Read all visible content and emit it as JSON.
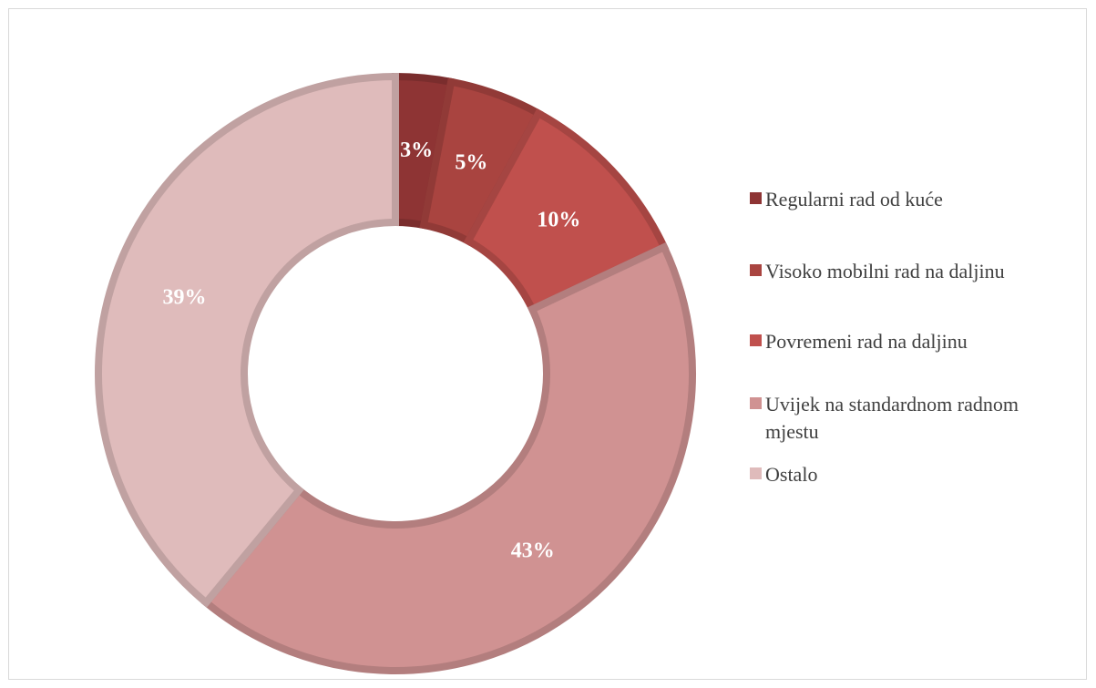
{
  "chart_data": {
    "type": "pie",
    "variant": "donut",
    "legend_position": "right",
    "slices": [
      {
        "name": "Regularni rad od kuće",
        "value": 3,
        "label": "3%",
        "color": "#8e3434"
      },
      {
        "name": "Visoko mobilni rad na daljinu",
        "value": 5,
        "label": "5%",
        "color": "#a94440"
      },
      {
        "name": "Povremeni rad na daljinu",
        "value": 10,
        "label": "10%",
        "color": "#c0504d"
      },
      {
        "name": "Uvijek na standardnom radnom mjestu",
        "value": 43,
        "label": "43%",
        "color": "#d09292"
      },
      {
        "name": "Ostalo",
        "value": 39,
        "label": "39%",
        "color": "#dfbbbb"
      }
    ]
  }
}
